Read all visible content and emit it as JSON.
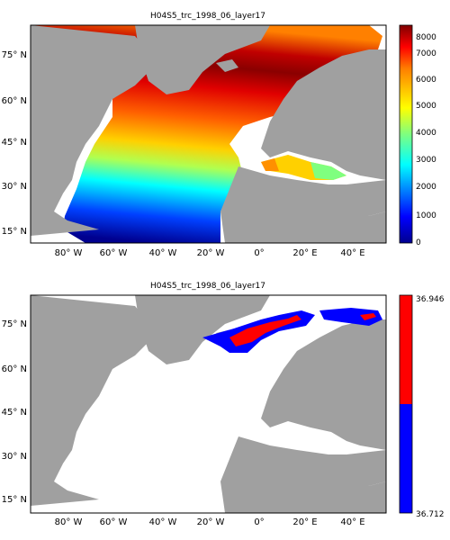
{
  "panels": [
    {
      "title": "H04S5_trc_1998_06_layer17",
      "colorbar": {
        "type": "continuous-jet",
        "ticks": [
          "8000",
          "7000",
          "6000",
          "5000",
          "4000",
          "3000",
          "2000",
          "1000",
          "0"
        ]
      },
      "lat_ticks": [
        "75° N",
        "60° N",
        "45° N",
        "30° N",
        "15° N"
      ],
      "lon_ticks": [
        "80° W",
        "60° W",
        "40° W",
        "20° W",
        "0°",
        "20° E",
        "40° E"
      ]
    },
    {
      "title": "H04S5_trc_1998_06_layer17",
      "colorbar": {
        "type": "two-class",
        "max_label": "36.946",
        "min_label": "36.712",
        "colors": [
          "#ff0000",
          "#0000ff"
        ]
      },
      "lat_ticks": [
        "75° N",
        "60° N",
        "45° N",
        "30° N",
        "15° N"
      ],
      "lon_ticks": [
        "80° W",
        "60° W",
        "40° W",
        "20° W",
        "0°",
        "20° E",
        "40° E"
      ]
    }
  ],
  "colors": {
    "land": "#a0a0a0",
    "ocean_nodata": "#ffffff",
    "frame": "#000000"
  }
}
